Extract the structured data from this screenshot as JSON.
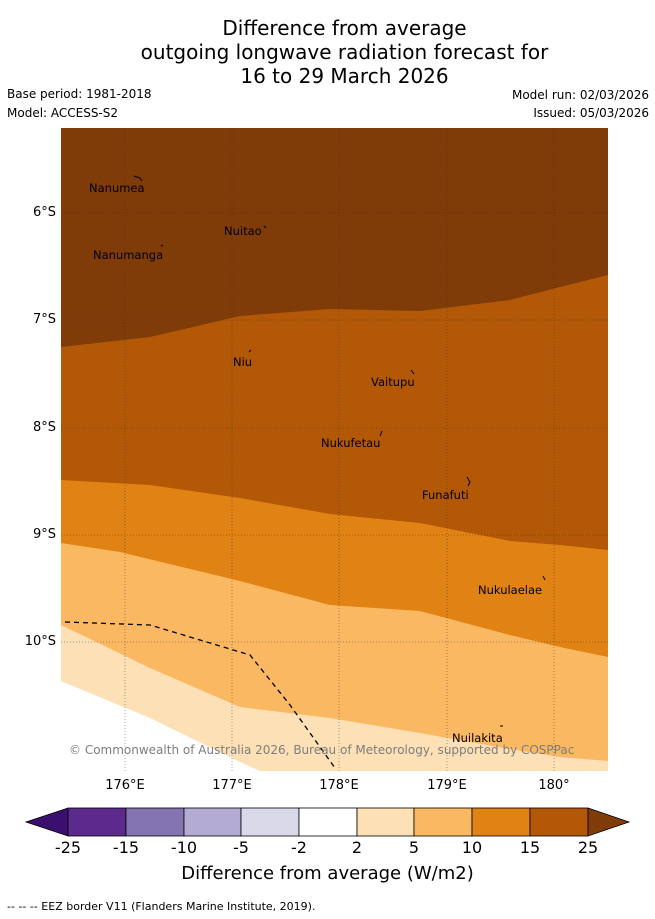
{
  "header": {
    "title_line1": "Difference from average",
    "title_line2": "outgoing longwave radiation forecast for",
    "title_line3": "16 to 29 March 2026",
    "base_period": "Base period: 1981-2018",
    "model": "Model: ACCESS-S2",
    "model_run": "Model run: 02/03/2026",
    "issued": "Issued: 05/03/2026"
  },
  "map": {
    "lat_labels": [
      "6°S",
      "7°S",
      "8°S",
      "9°S",
      "10°S"
    ],
    "lon_labels": [
      "176°E",
      "177°E",
      "178°E",
      "179°E",
      "180°"
    ],
    "places": [
      "Nanumea",
      "Nuitao",
      "Nanumanga",
      "Niu",
      "Vaitupu",
      "Nukufetau",
      "Funafuti",
      "Nukulaelae",
      "Nuilakita"
    ],
    "copyright": "© Commonwealth of Australia 2026, Bureau of Meteorology, supported by COSPPac"
  },
  "colorbar": {
    "ticks": [
      "-25",
      "-15",
      "-10",
      "-5",
      "-2",
      "2",
      "5",
      "10",
      "15",
      "25"
    ],
    "title": "Difference from average (W/m2)",
    "colors": [
      "#3b0f6f",
      "#5b2a8c",
      "#8475b0",
      "#b3abd3",
      "#d9d9ea",
      "#ffffff",
      "#fee0b6",
      "#fbb862",
      "#e08214",
      "#b35806",
      "#7f3b08"
    ]
  },
  "footer": {
    "legend": "--  --  -- EEZ border V11 (Flanders Marine Institute, 2019)."
  }
}
